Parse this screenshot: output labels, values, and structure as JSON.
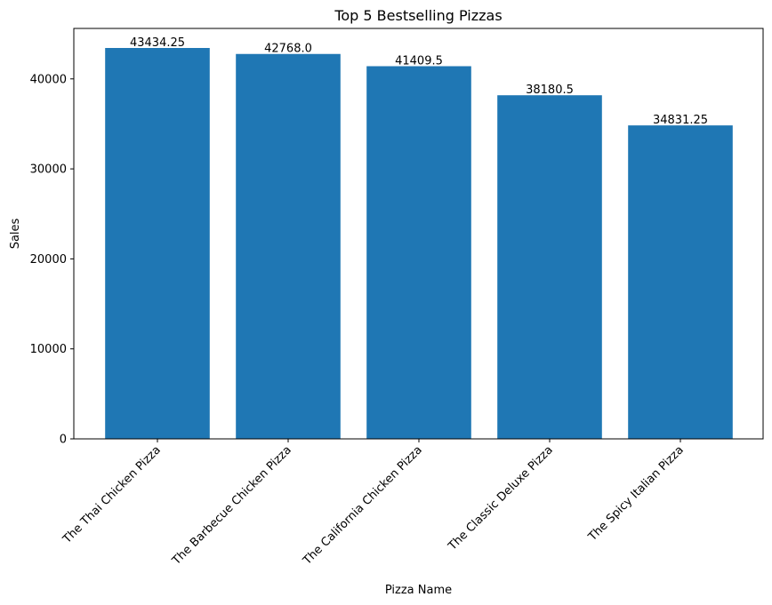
{
  "chart_data": {
    "type": "bar",
    "title": "Top 5 Bestselling Pizzas",
    "xlabel": "Pizza Name",
    "ylabel": "Sales",
    "categories": [
      "The Thai Chicken Pizza",
      "The Barbecue Chicken Pizza",
      "The California Chicken Pizza",
      "The Classic Deluxe Pizza",
      "The Spicy Italian Pizza"
    ],
    "values": [
      43434.25,
      42768.0,
      41409.5,
      38180.5,
      34831.25
    ],
    "value_labels": [
      "43434.25",
      "42768.0",
      "41409.5",
      "38180.5",
      "34831.25"
    ],
    "ylim": [
      0,
      45606
    ],
    "yticks": [
      0,
      10000,
      20000,
      30000,
      40000
    ],
    "ytick_labels": [
      "0",
      "10000",
      "20000",
      "30000",
      "40000"
    ],
    "bar_color": "#1f77b4",
    "grid": false
  }
}
